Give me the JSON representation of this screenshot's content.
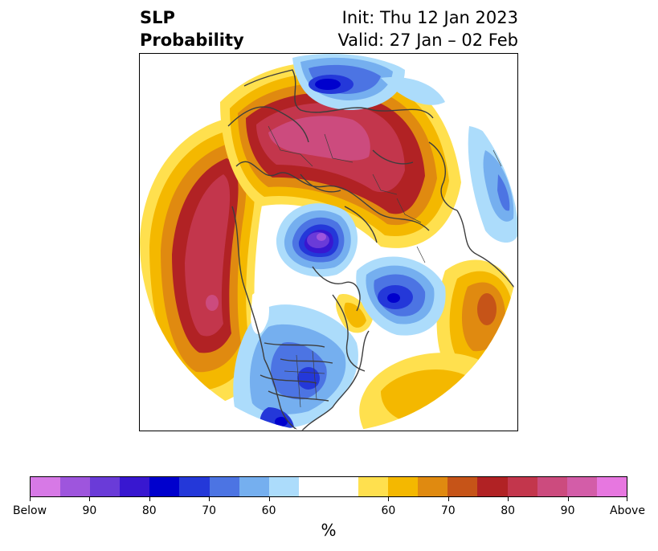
{
  "title": {
    "line1": "SLP",
    "line2": "Probability",
    "init": "Init: Thu 12 Jan 2023",
    "valid": "Valid: 27 Jan – 02 Feb"
  },
  "colorbar": {
    "unit": "%",
    "segments": [
      "#d779e6",
      "#9e55dd",
      "#6a3bd8",
      "#3817d0",
      "#0000cd",
      "#2438d9",
      "#4c74e3",
      "#75afef",
      "#acdcfb",
      "#ffffff",
      "#ffffff",
      "#ffe04e",
      "#f4b800",
      "#e08a10",
      "#c65418",
      "#b12224",
      "#c3364c",
      "#cc4b7e",
      "#d35da8",
      "#e777e0"
    ],
    "ticks": [
      {
        "label": "Below",
        "index": 0
      },
      {
        "label": "90",
        "index": 2
      },
      {
        "label": "80",
        "index": 4
      },
      {
        "label": "70",
        "index": 6
      },
      {
        "label": "60",
        "index": 8
      },
      {
        "label": "60",
        "index": 12
      },
      {
        "label": "70",
        "index": 14
      },
      {
        "label": "80",
        "index": 16
      },
      {
        "label": "90",
        "index": 18
      },
      {
        "label": "Above",
        "index": 20
      }
    ]
  }
}
